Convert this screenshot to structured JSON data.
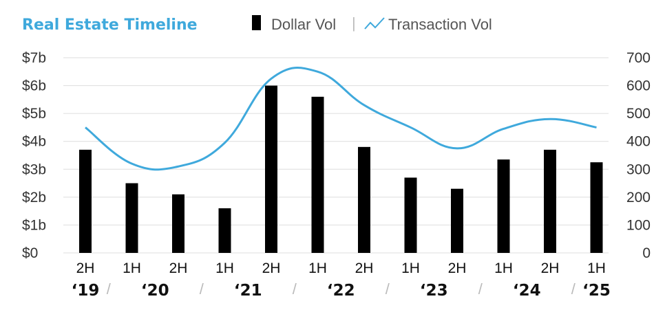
{
  "colors": {
    "title": "#3fa9dc",
    "bar": "#000000",
    "line": "#3fa9dc",
    "grid": "#dddddd"
  },
  "chart_data": {
    "type": "bar",
    "title": "Real Estate Timeline",
    "legend": {
      "placement": "top",
      "dollar_label": "Dollar Vol",
      "transaction_label": "Transaction Vol",
      "separator": "|"
    },
    "categories": [
      "2H",
      "1H",
      "2H",
      "1H",
      "2H",
      "1H",
      "2H",
      "1H",
      "2H",
      "1H",
      "2H",
      "1H"
    ],
    "year_labels": [
      "‘19",
      "‘20",
      "‘21",
      "‘22",
      "‘23",
      "‘24",
      "‘25"
    ],
    "year_separator": "/",
    "grid": true,
    "y_left": {
      "ticks": [
        "$0",
        "$1b",
        "$2b",
        "$3b",
        "$4b",
        "$5b",
        "$6b",
        "$7b"
      ],
      "range": [
        0,
        7
      ]
    },
    "y_right": {
      "ticks": [
        "0",
        "100",
        "200",
        "300",
        "400",
        "500",
        "600",
        "700"
      ],
      "range": [
        0,
        700
      ]
    },
    "series": [
      {
        "name": "Dollar Vol",
        "type": "bar",
        "axis": "left",
        "values": [
          3.7,
          2.5,
          2.1,
          1.6,
          6.0,
          5.6,
          3.8,
          2.7,
          2.3,
          3.35,
          3.7,
          3.25
        ]
      },
      {
        "name": "Transaction Vol",
        "type": "line",
        "axis": "right",
        "values": [
          450,
          320,
          310,
          395,
          625,
          650,
          530,
          450,
          375,
          445,
          480,
          450
        ]
      }
    ]
  }
}
